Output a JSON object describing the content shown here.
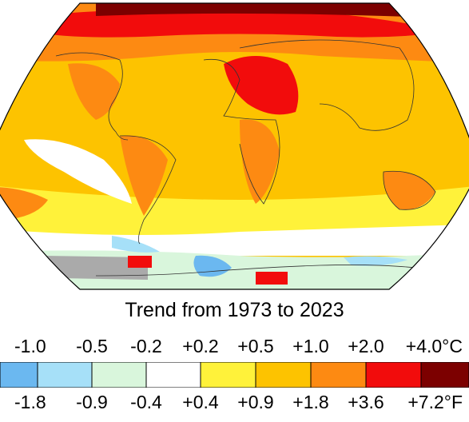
{
  "title": "Trend from 1973 to 2023",
  "legend": {
    "celsius_labels": [
      "-1.0",
      "-0.5",
      "-0.2",
      "+0.2",
      "+0.5",
      "+1.0",
      "+2.0",
      "+4.0°C"
    ],
    "fahrenheit_labels": [
      "-1.8",
      "-0.9",
      "-0.4",
      "+0.4",
      "+0.9",
      "+1.8",
      "+3.6",
      "+7.2°F"
    ],
    "bin_colors": [
      "#6bb8f0",
      "#a6e0f8",
      "#d9f6dc",
      "#ffffff",
      "#fff23a",
      "#fdc300",
      "#fd8a12",
      "#f20c0c",
      "#7c0000"
    ]
  },
  "map": {
    "colors": {
      "dark_red": "#7c0000",
      "red": "#f20c0c",
      "orange": "#fd8a12",
      "light_orange": "#fdc300",
      "yellow": "#fff23a",
      "white": "#ffffff",
      "pale_green": "#d9f6dc",
      "light_blue": "#a6e0f8",
      "blue": "#6bb8f0",
      "no_data": "#aaaaaa",
      "coastline": "#333333"
    }
  }
}
